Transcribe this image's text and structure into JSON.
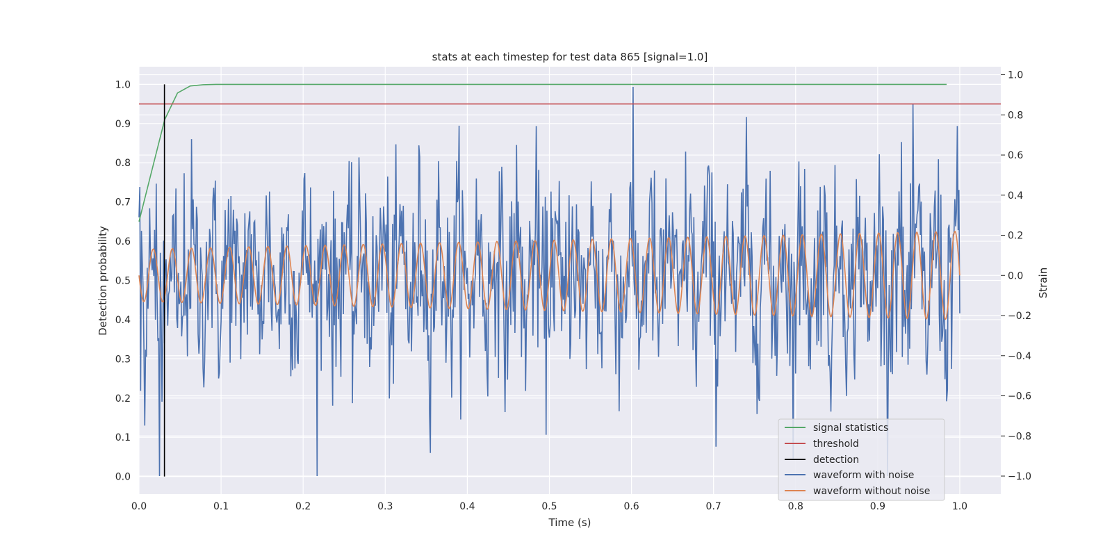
{
  "chart_data": {
    "type": "line",
    "title": "stats at each timestep for test data 865 [signal=1.0]",
    "xlabel": "Time (s)",
    "ylabel_left": "Detection probability",
    "ylabel_right": "Strain",
    "xlim": [
      0.0,
      1.05
    ],
    "ylim_left": [
      -0.045,
      1.045
    ],
    "ylim_right": [
      -1.09,
      1.04
    ],
    "x_ticks": [
      "0.0",
      "0.1",
      "0.2",
      "0.3",
      "0.4",
      "0.5",
      "0.6",
      "0.7",
      "0.8",
      "0.9",
      "1.0"
    ],
    "y_left_ticks": [
      "0.0",
      "0.1",
      "0.2",
      "0.3",
      "0.4",
      "0.5",
      "0.6",
      "0.7",
      "0.8",
      "0.9",
      "1.0"
    ],
    "y_right_ticks": [
      "−1.0",
      "−0.8",
      "−0.6",
      "−0.4",
      "−0.2",
      "0.0",
      "0.2",
      "0.4",
      "0.6",
      "0.8",
      "1.0"
    ],
    "grid": true,
    "legend_position": "lower-right",
    "series": [
      {
        "name": "signal statistics",
        "axis": "left",
        "color": "#55a868",
        "x": [
          0.0,
          0.0156,
          0.0313,
          0.0469,
          0.0625,
          0.0781,
          0.0938,
          0.25,
          0.5,
          0.75,
          0.984
        ],
        "y": [
          0.65,
          0.78,
          0.91,
          0.978,
          0.996,
          0.999,
          1.0,
          1.0,
          1.0,
          1.0,
          1.0
        ]
      },
      {
        "name": "threshold",
        "axis": "left",
        "color": "#c44e52",
        "x": [
          0.0,
          1.05
        ],
        "y": [
          0.95,
          0.95
        ]
      },
      {
        "name": "detection",
        "axis": "left",
        "color": "#000000",
        "x": [
          0.031,
          0.031
        ],
        "y": [
          0.0,
          1.0
        ]
      },
      {
        "name": "waveform with noise",
        "axis": "right",
        "color": "#4c72b0",
        "description_of_values": "noisy strain, range approx -1.0 to 1.0, 1000 samples over 0-1 s"
      },
      {
        "name": "waveform without noise",
        "axis": "right",
        "color": "#dd8452",
        "description_of_values": "sinusoid, amplitude approx 0.13-0.22 rising with time, about 43 cycles over 0-1 s"
      }
    ]
  }
}
